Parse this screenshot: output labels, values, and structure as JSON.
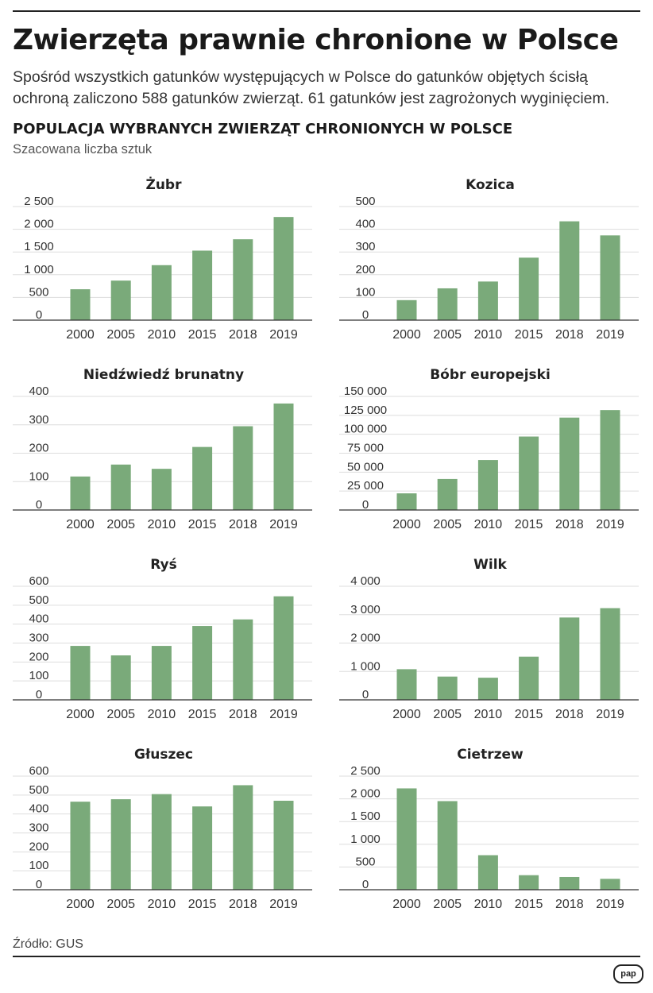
{
  "header": {
    "title": "Zwierzęta prawnie chronione w Polsce",
    "lead": "Spośród wszystkich gatunków występujących w Polsce do gatunków objętych ścisłą ochroną zaliczono 588 gatunków zwierząt. 61 gatunków jest zagrożonych wyginięciem.",
    "subtitle": "POPULACJA WYBRANYCH ZWIERZĄT CHRONIONYCH W POLSCE",
    "note": "Szacowana liczba sztuk"
  },
  "footer": {
    "source": "Źródło: GUS",
    "logo": "pap"
  },
  "colors": {
    "bar": "#7aaa7a",
    "grid": "#dddddd",
    "axis": "#333333",
    "text": "#222222"
  },
  "chart_data": [
    {
      "type": "bar",
      "title": "Żubr",
      "categories": [
        "2000",
        "2005",
        "2010",
        "2015",
        "2018",
        "2019"
      ],
      "values": [
        680,
        870,
        1210,
        1530,
        1780,
        2270
      ],
      "ylim": [
        0,
        2500
      ],
      "yticks": [
        0,
        500,
        1000,
        1500,
        2000,
        2500
      ],
      "ytick_labels": [
        "0",
        "500",
        "1 000",
        "1 500",
        "2 000",
        "2 500"
      ],
      "xlabel": "",
      "ylabel": ""
    },
    {
      "type": "bar",
      "title": "Kozica",
      "categories": [
        "2000",
        "2005",
        "2010",
        "2015",
        "2018",
        "2019"
      ],
      "values": [
        88,
        140,
        170,
        275,
        435,
        373
      ],
      "ylim": [
        0,
        500
      ],
      "yticks": [
        0,
        100,
        200,
        300,
        400,
        500
      ],
      "ytick_labels": [
        "0",
        "100",
        "200",
        "300",
        "400",
        "500"
      ],
      "xlabel": "",
      "ylabel": ""
    },
    {
      "type": "bar",
      "title": "Niedźwiedź brunatny",
      "categories": [
        "2000",
        "2005",
        "2010",
        "2015",
        "2018",
        "2019"
      ],
      "values": [
        118,
        160,
        145,
        222,
        295,
        375
      ],
      "ylim": [
        0,
        400
      ],
      "yticks": [
        0,
        100,
        200,
        300,
        400
      ],
      "ytick_labels": [
        "0",
        "100",
        "200",
        "300",
        "400"
      ],
      "xlabel": "",
      "ylabel": ""
    },
    {
      "type": "bar",
      "title": "Bóbr europejski",
      "categories": [
        "2000",
        "2005",
        "2010",
        "2015",
        "2018",
        "2019"
      ],
      "values": [
        22000,
        41000,
        66000,
        97000,
        122000,
        132000
      ],
      "ylim": [
        0,
        150000
      ],
      "yticks": [
        0,
        25000,
        50000,
        75000,
        100000,
        125000,
        150000
      ],
      "ytick_labels": [
        "0",
        "25 000",
        "50 000",
        "75 000",
        "100 000",
        "125 000",
        "150 000"
      ],
      "xlabel": "",
      "ylabel": ""
    },
    {
      "type": "bar",
      "title": "Ryś",
      "categories": [
        "2000",
        "2005",
        "2010",
        "2015",
        "2018",
        "2019"
      ],
      "values": [
        285,
        235,
        285,
        390,
        425,
        547
      ],
      "ylim": [
        0,
        600
      ],
      "yticks": [
        0,
        100,
        200,
        300,
        400,
        500,
        600
      ],
      "ytick_labels": [
        "0",
        "100",
        "200",
        "300",
        "400",
        "500",
        "600"
      ],
      "xlabel": "",
      "ylabel": ""
    },
    {
      "type": "bar",
      "title": "Wilk",
      "categories": [
        "2000",
        "2005",
        "2010",
        "2015",
        "2018",
        "2019"
      ],
      "values": [
        1080,
        820,
        780,
        1520,
        2900,
        3230
      ],
      "ylim": [
        0,
        4000
      ],
      "yticks": [
        0,
        1000,
        2000,
        3000,
        4000
      ],
      "ytick_labels": [
        "0",
        "1 000",
        "2 000",
        "3 000",
        "4 000"
      ],
      "xlabel": "",
      "ylabel": ""
    },
    {
      "type": "bar",
      "title": "Głuszec",
      "categories": [
        "2000",
        "2005",
        "2010",
        "2015",
        "2018",
        "2019"
      ],
      "values": [
        465,
        478,
        505,
        440,
        552,
        470
      ],
      "ylim": [
        0,
        600
      ],
      "yticks": [
        0,
        100,
        200,
        300,
        400,
        500,
        600
      ],
      "ytick_labels": [
        "0",
        "100",
        "200",
        "300",
        "400",
        "500",
        "600"
      ],
      "xlabel": "",
      "ylabel": ""
    },
    {
      "type": "bar",
      "title": "Cietrzew",
      "categories": [
        "2000",
        "2005",
        "2010",
        "2015",
        "2018",
        "2019"
      ],
      "values": [
        2230,
        1950,
        760,
        320,
        280,
        240
      ],
      "ylim": [
        0,
        2500
      ],
      "yticks": [
        0,
        500,
        1000,
        1500,
        2000,
        2500
      ],
      "ytick_labels": [
        "0",
        "500",
        "1 000",
        "1 500",
        "2 000",
        "2 500"
      ],
      "xlabel": "",
      "ylabel": ""
    }
  ]
}
